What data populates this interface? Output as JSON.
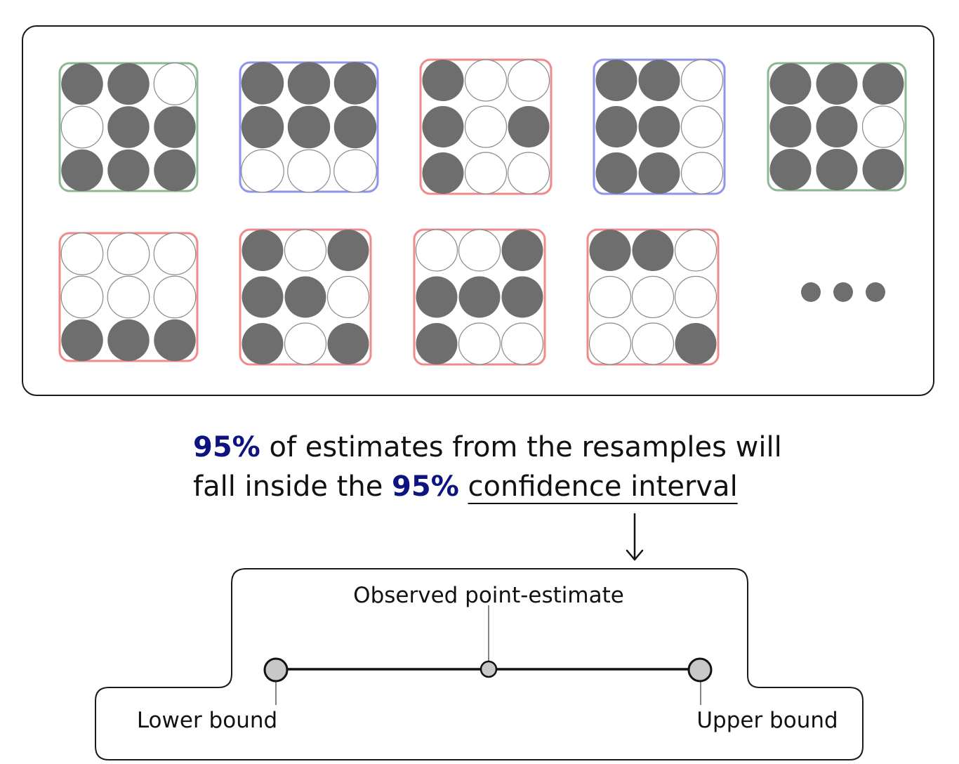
{
  "resamples": {
    "colors": {
      "filled": "#6e6e6e",
      "empty": "#ffffff",
      "dot_stroke": "#8a8a8a",
      "panel_border": "#1a1a1a",
      "green": "#8bb892",
      "blue": "#8f93ea",
      "red": "#f08a8a"
    },
    "grids": [
      {
        "frame": "green",
        "cells": [
          1,
          1,
          0,
          0,
          1,
          1,
          1,
          1,
          1
        ]
      },
      {
        "frame": "blue",
        "cells": [
          1,
          1,
          1,
          1,
          1,
          1,
          0,
          0,
          0
        ]
      },
      {
        "frame": "red",
        "cells": [
          1,
          0,
          0,
          1,
          0,
          1,
          1,
          0,
          0
        ]
      },
      {
        "frame": "blue",
        "cells": [
          1,
          1,
          0,
          1,
          1,
          0,
          1,
          1,
          0
        ]
      },
      {
        "frame": "green",
        "cells": [
          1,
          1,
          1,
          1,
          1,
          0,
          1,
          1,
          1
        ]
      },
      {
        "frame": "red",
        "cells": [
          0,
          0,
          0,
          0,
          0,
          0,
          1,
          1,
          1
        ]
      },
      {
        "frame": "red",
        "cells": [
          1,
          0,
          1,
          1,
          1,
          0,
          1,
          0,
          1
        ]
      },
      {
        "frame": "red",
        "cells": [
          0,
          0,
          1,
          1,
          1,
          1,
          1,
          0,
          0
        ]
      },
      {
        "frame": "red",
        "cells": [
          1,
          1,
          0,
          0,
          0,
          0,
          0,
          0,
          1
        ]
      }
    ],
    "more_indicator": "ellipsis-dots"
  },
  "statement": {
    "line1_accent": "95%",
    "line1_rest": " of estimates from the resamples will",
    "line2_lead": "fall inside the ",
    "line2_accent": "95%",
    "line2_space": " ",
    "line2_link": "confidence interval",
    "accent_color": "#0d1480"
  },
  "interval": {
    "point_label": "Observed point-estimate",
    "lower_label": "Lower bound",
    "upper_label": "Upper bound",
    "marker_fill": "#c8c8c8"
  }
}
